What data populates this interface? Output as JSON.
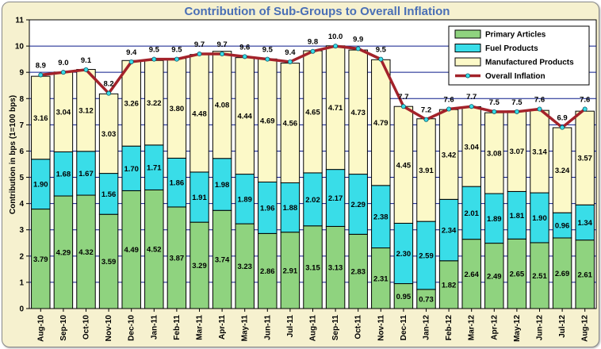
{
  "chart_data": {
    "type": "bar",
    "stacked": true,
    "title": "Contribution of Sub-Groups to Overall Inflation",
    "ylabel": "Contribution in bps (1=100 bps)",
    "xlabel": "",
    "ylim": [
      0,
      11
    ],
    "yticks": [
      0,
      1,
      2,
      3,
      4,
      5,
      6,
      7,
      8,
      9,
      10,
      11
    ],
    "grid": true,
    "legend_position": "top-right",
    "categories": [
      "Aug-10",
      "Sep-10",
      "Oct-10",
      "Nov-10",
      "Dec-10",
      "Jan-11",
      "Feb-11",
      "Mar-11",
      "Apr-11",
      "May-11",
      "Jun-11",
      "Jul-11",
      "Aug-11",
      "Sep-11",
      "Oct-11",
      "Nov-11",
      "Dec-11",
      "Jan-12",
      "Feb-12",
      "Mar-12",
      "Apr-12",
      "May-12",
      "Jun-12",
      "Jul-12",
      "Aug-12"
    ],
    "series": [
      {
        "name": "Primary Articles",
        "kind": "bar",
        "color": "#8fd37f",
        "values": [
          3.79,
          4.29,
          4.32,
          3.59,
          4.49,
          4.52,
          3.87,
          3.29,
          3.74,
          3.23,
          2.86,
          2.91,
          3.15,
          3.13,
          2.83,
          2.31,
          0.95,
          0.73,
          1.82,
          2.64,
          2.49,
          2.65,
          2.51,
          2.69,
          2.61
        ],
        "labels": [
          "3.79",
          "4.29",
          "4.32",
          "3.59",
          "4.49",
          "4.52",
          "3.87",
          "3.29",
          "3.74",
          "3.23",
          "2.86",
          "2.91",
          "3.15",
          "3.13",
          "2.83",
          "2.31",
          "0.95",
          "0.73",
          "1.82",
          "2.64",
          "2.49",
          "2.65",
          "2.51",
          "2.69",
          "2.61"
        ]
      },
      {
        "name": "Fuel Products",
        "kind": "bar",
        "color": "#39dde8",
        "values": [
          1.9,
          1.68,
          1.67,
          1.56,
          1.7,
          1.71,
          1.86,
          1.91,
          1.98,
          1.89,
          1.96,
          1.88,
          2.02,
          2.17,
          2.29,
          2.38,
          2.3,
          2.59,
          2.34,
          2.01,
          1.89,
          1.81,
          1.9,
          0.96,
          1.34
        ],
        "labels": [
          "1.90",
          "1.68",
          "1.67",
          "1.56",
          "1.70",
          "1.71",
          "1.86",
          "1.91",
          "1.98",
          "1.89",
          "1.96",
          "1.88",
          "2.02",
          "2.17",
          "2.29",
          "2.38",
          "2.30",
          "2.59",
          "2.34",
          "2.01",
          "1.89",
          "1.81",
          "1.90",
          "0.96",
          "1.34"
        ]
      },
      {
        "name": "Manufactured Products",
        "kind": "bar",
        "color": "#fcf9c8",
        "values": [
          3.16,
          3.04,
          3.12,
          3.03,
          3.26,
          3.22,
          3.8,
          4.48,
          4.08,
          4.44,
          4.69,
          4.56,
          4.65,
          4.71,
          4.73,
          4.79,
          4.45,
          3.91,
          3.42,
          3.04,
          3.08,
          3.07,
          3.14,
          3.24,
          3.57
        ],
        "labels": [
          "3.16",
          "3.04",
          "3.12",
          "3.03",
          "3.26",
          "3.22",
          "3.80",
          "4.48",
          "4.08",
          "4.44",
          "4.69",
          "4.56",
          "4.65",
          "4.71",
          "4.73",
          "4.79",
          "4.45",
          "3.91",
          "3.42",
          "3.04",
          "3.08",
          "3.07",
          "3.14",
          "3.24",
          "3.57"
        ]
      },
      {
        "name": "Overall Inflation",
        "kind": "line",
        "color": "#a3222a",
        "marker_color": "#39dde8",
        "values": [
          8.9,
          9.0,
          9.1,
          8.2,
          9.4,
          9.5,
          9.5,
          9.7,
          9.7,
          9.6,
          9.5,
          9.4,
          9.8,
          10.0,
          9.9,
          9.5,
          7.7,
          7.2,
          7.6,
          7.7,
          7.5,
          7.5,
          7.6,
          6.9,
          7.6
        ],
        "labels": [
          "8.9",
          "9.0",
          "9.1",
          "8.2",
          "9.4",
          "9.5",
          "9.5",
          "9.7",
          "9.7",
          "9.6",
          "9.5",
          "9.4",
          "9.8",
          "10.0",
          "9.9",
          "9.5",
          "7.7",
          "7.2",
          "7.6",
          "7.7",
          "7.5",
          "7.5",
          "7.6",
          "6.9",
          "7.6"
        ]
      }
    ]
  }
}
